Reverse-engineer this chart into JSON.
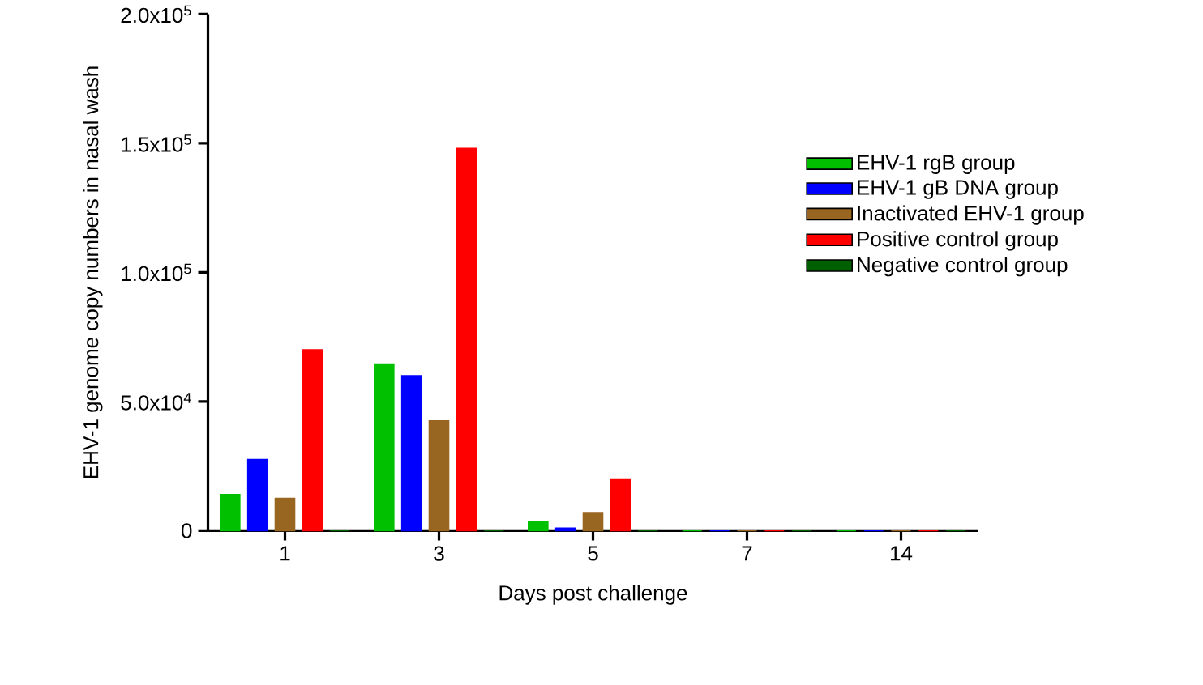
{
  "chart_data": {
    "type": "bar",
    "xlabel": "Days post challenge",
    "ylabel": "EHV-1 genome copy numbers in nasal wash",
    "categories": [
      "1",
      "3",
      "5",
      "7",
      "14"
    ],
    "series": [
      {
        "name": "EHV-1 rgB group",
        "color": "#00c000",
        "values": [
          14000,
          64500,
          3500,
          0,
          0
        ]
      },
      {
        "name": "EHV-1 gB DNA group",
        "color": "#0000ff",
        "values": [
          27500,
          60000,
          1000,
          0,
          0
        ]
      },
      {
        "name": "Inactivated EHV-1 group",
        "color": "#996622",
        "values": [
          12500,
          42500,
          7000,
          0,
          0
        ]
      },
      {
        "name": "Positive control group",
        "color": "#ff0000",
        "values": [
          70000,
          148000,
          20000,
          0,
          0
        ]
      },
      {
        "name": "Negative control group",
        "color": "#006000",
        "values": [
          0,
          0,
          0,
          0,
          0
        ]
      }
    ],
    "ylim": [
      0,
      200000
    ],
    "yticks": [
      0,
      {
        "value": 50000,
        "label": "5.0x10$^{4}$"
      },
      {
        "value": 100000,
        "label": "1.0x10$^{5}$"
      },
      {
        "value": 150000,
        "label": "1.5x10$^{5}$"
      },
      {
        "value": 200000,
        "label": "2.0x10$^{5}$"
      }
    ],
    "legend": "right"
  }
}
